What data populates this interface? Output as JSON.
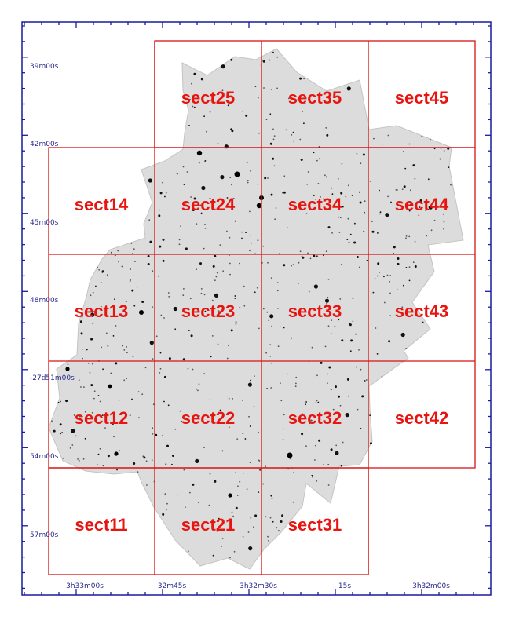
{
  "colors": {
    "grid": "#d61414",
    "label": "#e8140f",
    "axis": "#1a1a9e",
    "mosaic_fill": "#dcdcdc",
    "mosaic_edge": "#c4c4c4"
  },
  "dec_labels": [
    "39m00s",
    "42m00s",
    "45m00s",
    "48m00s",
    "-27d51m00s",
    "54m00s",
    "57m00s"
  ],
  "ra_labels": [
    "3h33m00s",
    "32m45s",
    "3h32m30s",
    "15s",
    "3h32m00s"
  ],
  "sections": [
    {
      "id": "sect25",
      "label": "sect25",
      "col": 1,
      "row": 0
    },
    {
      "id": "sect35",
      "label": "sect35",
      "col": 2,
      "row": 0
    },
    {
      "id": "sect45",
      "label": "sect45",
      "col": 3,
      "row": 0
    },
    {
      "id": "sect14",
      "label": "sect14",
      "col": 0,
      "row": 1
    },
    {
      "id": "sect24",
      "label": "sect24",
      "col": 1,
      "row": 1
    },
    {
      "id": "sect34",
      "label": "sect34",
      "col": 2,
      "row": 1
    },
    {
      "id": "sect44",
      "label": "sect44",
      "col": 3,
      "row": 1
    },
    {
      "id": "sect13",
      "label": "sect13",
      "col": 0,
      "row": 2
    },
    {
      "id": "sect23",
      "label": "sect23",
      "col": 1,
      "row": 2
    },
    {
      "id": "sect33",
      "label": "sect33",
      "col": 2,
      "row": 2
    },
    {
      "id": "sect43",
      "label": "sect43",
      "col": 3,
      "row": 2
    },
    {
      "id": "sect12",
      "label": "sect12",
      "col": 0,
      "row": 3
    },
    {
      "id": "sect22",
      "label": "sect22",
      "col": 1,
      "row": 3
    },
    {
      "id": "sect32",
      "label": "sect32",
      "col": 2,
      "row": 3
    },
    {
      "id": "sect42",
      "label": "sect42",
      "col": 3,
      "row": 3
    },
    {
      "id": "sect11",
      "label": "sect11",
      "col": 0,
      "row": 4
    },
    {
      "id": "sect21",
      "label": "sect21",
      "col": 1,
      "row": 4
    },
    {
      "id": "sect31",
      "label": "sect31",
      "col": 2,
      "row": 4
    }
  ]
}
